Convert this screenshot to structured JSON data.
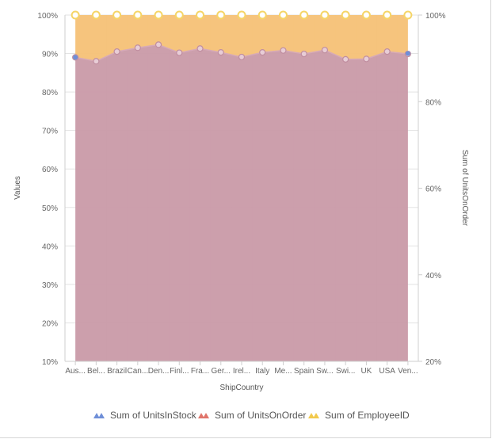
{
  "chart_data": {
    "type": "area",
    "stacking": "100%",
    "title": "",
    "xlabel": "ShipCountry",
    "ylabel": "Values",
    "y2label": "Sum of UnitsOnOrder",
    "ylim": [
      10,
      100
    ],
    "y2lim": [
      20,
      100
    ],
    "yticks": [
      "10%",
      "20%",
      "30%",
      "40%",
      "50%",
      "60%",
      "70%",
      "80%",
      "90%",
      "100%"
    ],
    "y2ticks": [
      "20%",
      "40%",
      "60%",
      "80%",
      "100%"
    ],
    "grid": true,
    "legend_position": "bottom",
    "categories": [
      "Aus...",
      "Bel...",
      "Brazil",
      "Can...",
      "Den...",
      "Finl...",
      "Fra...",
      "Ger...",
      "Irel...",
      "Italy",
      "Me...",
      "Spain",
      "Sw...",
      "Swi...",
      "UK",
      "USA",
      "Ven..."
    ],
    "series": [
      {
        "name": "Sum of UnitsInStock",
        "color": "#6f8fd8",
        "axis": "primary",
        "values": [
          89,
          null,
          null,
          null,
          null,
          null,
          null,
          null,
          null,
          null,
          null,
          null,
          null,
          null,
          null,
          null,
          90
        ]
      },
      {
        "name": "Sum of UnitsOnOrder",
        "color": "#c99aa8",
        "axis": "primary",
        "values": [
          89,
          88,
          90.5,
          91.5,
          92.3,
          90.2,
          91.3,
          90.3,
          89.1,
          90.3,
          90.8,
          89.9,
          90.9,
          88.5,
          88.6,
          90.5,
          89.9
        ]
      },
      {
        "name": "Sum of EmployeeID",
        "color": "#f5c176",
        "axis": "primary",
        "values": [
          100,
          100,
          100,
          100,
          100,
          100,
          100,
          100,
          100,
          100,
          100,
          100,
          100,
          100,
          100,
          100,
          100
        ]
      }
    ]
  },
  "legend": {
    "items": [
      {
        "label": "Sum of UnitsInStock",
        "color": "#6f8fd8"
      },
      {
        "label": "Sum of UnitsOnOrder",
        "color": "#e0746a"
      },
      {
        "label": "Sum of EmployeeID",
        "color": "#f2c94c"
      }
    ]
  }
}
